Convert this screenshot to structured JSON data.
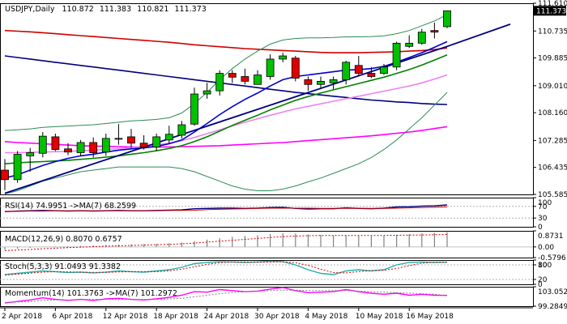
{
  "chart_data": {
    "type": "candlestick",
    "symbol": "USDJPY",
    "timeframe": "Daily",
    "header": {
      "label": "USDJPY,Daily",
      "open": "110.872",
      "high": "111.383",
      "low": "110.821",
      "close": "111.373"
    },
    "price_axis": {
      "ticks": [
        "111.610",
        "110.735",
        "109.885",
        "109.010",
        "108.160",
        "107.285",
        "106.435",
        "105.585"
      ],
      "range": [
        105.585,
        111.61
      ],
      "current_price_label": "111.373"
    },
    "date_axis": {
      "labels": [
        "2 Apr 2018",
        "6 Apr 2018",
        "12 Apr 2018",
        "18 Apr 2018",
        "24 Apr 2018",
        "30 Apr 2018",
        "4 May 2018",
        "10 May 2018",
        "16 May 2018"
      ],
      "label_bar_index": [
        0,
        4,
        8,
        12,
        16,
        20,
        24,
        28,
        32
      ]
    },
    "candles": [
      {
        "o": 106.35,
        "h": 106.7,
        "l": 105.72,
        "c": 106.05
      },
      {
        "o": 106.05,
        "h": 106.95,
        "l": 105.95,
        "c": 106.85
      },
      {
        "o": 106.8,
        "h": 107.05,
        "l": 106.3,
        "c": 106.9
      },
      {
        "o": 106.88,
        "h": 107.55,
        "l": 106.75,
        "c": 107.42
      },
      {
        "o": 107.4,
        "h": 107.5,
        "l": 106.95,
        "c": 107.0
      },
      {
        "o": 107.02,
        "h": 107.2,
        "l": 106.82,
        "c": 106.92
      },
      {
        "o": 106.9,
        "h": 107.3,
        "l": 106.8,
        "c": 107.22
      },
      {
        "o": 107.22,
        "h": 107.38,
        "l": 106.75,
        "c": 106.9
      },
      {
        "o": 106.92,
        "h": 107.5,
        "l": 106.8,
        "c": 107.35
      },
      {
        "o": 107.35,
        "h": 107.8,
        "l": 107.15,
        "c": 107.35
      },
      {
        "o": 107.4,
        "h": 107.65,
        "l": 107.05,
        "c": 107.2
      },
      {
        "o": 107.2,
        "h": 107.45,
        "l": 107.0,
        "c": 107.08
      },
      {
        "o": 107.08,
        "h": 107.5,
        "l": 106.95,
        "c": 107.4
      },
      {
        "o": 107.3,
        "h": 107.75,
        "l": 107.2,
        "c": 107.48
      },
      {
        "o": 107.45,
        "h": 107.9,
        "l": 107.35,
        "c": 107.78
      },
      {
        "o": 107.8,
        "h": 108.95,
        "l": 107.75,
        "c": 108.75
      },
      {
        "o": 108.75,
        "h": 109.1,
        "l": 108.6,
        "c": 108.85
      },
      {
        "o": 108.85,
        "h": 109.5,
        "l": 108.7,
        "c": 109.4
      },
      {
        "o": 109.4,
        "h": 109.5,
        "l": 109.1,
        "c": 109.28
      },
      {
        "o": 109.3,
        "h": 109.55,
        "l": 109.05,
        "c": 109.15
      },
      {
        "o": 109.05,
        "h": 109.5,
        "l": 109.05,
        "c": 109.35
      },
      {
        "o": 109.3,
        "h": 110.0,
        "l": 109.2,
        "c": 109.85
      },
      {
        "o": 109.85,
        "h": 110.05,
        "l": 109.75,
        "c": 109.95
      },
      {
        "o": 109.88,
        "h": 109.95,
        "l": 109.15,
        "c": 109.25
      },
      {
        "o": 109.2,
        "h": 109.3,
        "l": 108.85,
        "c": 109.05
      },
      {
        "o": 109.05,
        "h": 109.3,
        "l": 108.9,
        "c": 109.15
      },
      {
        "o": 109.1,
        "h": 109.3,
        "l": 108.9,
        "c": 109.2
      },
      {
        "o": 109.2,
        "h": 109.8,
        "l": 109.05,
        "c": 109.75
      },
      {
        "o": 109.65,
        "h": 109.95,
        "l": 109.3,
        "c": 109.4
      },
      {
        "o": 109.4,
        "h": 109.6,
        "l": 109.25,
        "c": 109.3
      },
      {
        "o": 109.4,
        "h": 109.7,
        "l": 109.35,
        "c": 109.6
      },
      {
        "o": 109.6,
        "h": 110.4,
        "l": 109.5,
        "c": 110.35
      },
      {
        "o": 110.25,
        "h": 110.6,
        "l": 110.2,
        "c": 110.35
      },
      {
        "o": 110.35,
        "h": 110.8,
        "l": 110.3,
        "c": 110.7
      },
      {
        "o": 110.75,
        "h": 111.0,
        "l": 110.5,
        "c": 110.7
      },
      {
        "o": 110.872,
        "h": 111.383,
        "l": 110.821,
        "c": 111.373
      }
    ],
    "overlays": [
      {
        "kind": "moving-average",
        "color": "#d00000",
        "values": [
          110.75,
          110.73,
          110.71,
          110.68,
          110.65,
          110.62,
          110.59,
          110.56,
          110.53,
          110.5,
          110.47,
          110.44,
          110.41,
          110.38,
          110.34,
          110.3,
          110.27,
          110.24,
          110.21,
          110.18,
          110.16,
          110.14,
          110.12,
          110.1,
          110.08,
          110.06,
          110.05,
          110.05,
          110.05,
          110.06,
          110.07,
          110.08,
          110.1,
          110.12,
          110.15,
          110.2
        ]
      },
      {
        "kind": "moving-average",
        "color": "#000080",
        "values": [
          109.95,
          109.9,
          109.85,
          109.8,
          109.75,
          109.7,
          109.65,
          109.6,
          109.55,
          109.5,
          109.45,
          109.4,
          109.35,
          109.3,
          109.25,
          109.2,
          109.15,
          109.1,
          109.05,
          109.0,
          108.95,
          108.9,
          108.85,
          108.8,
          108.76,
          108.72,
          108.68,
          108.64,
          108.6,
          108.56,
          108.53,
          108.5,
          108.48,
          108.45,
          108.43,
          108.42
        ]
      },
      {
        "kind": "moving-average",
        "color": "#ff00ff",
        "values": [
          107.25,
          107.22,
          107.2,
          107.18,
          107.16,
          107.14,
          107.12,
          107.11,
          107.1,
          107.09,
          107.08,
          107.08,
          107.08,
          107.08,
          107.09,
          107.1,
          107.11,
          107.12,
          107.14,
          107.16,
          107.18,
          107.2,
          107.22,
          107.25,
          107.28,
          107.31,
          107.34,
          107.37,
          107.4,
          107.43,
          107.47,
          107.51,
          107.55,
          107.6,
          107.66,
          107.72
        ]
      },
      {
        "kind": "moving-average",
        "color": "#ee82ee",
        "values": [
          106.9,
          106.9,
          106.91,
          106.92,
          106.93,
          106.94,
          106.96,
          106.98,
          107.0,
          107.03,
          107.06,
          107.1,
          107.14,
          107.2,
          107.28,
          107.38,
          107.5,
          107.62,
          107.74,
          107.86,
          107.97,
          108.08,
          108.18,
          108.28,
          108.36,
          108.44,
          108.52,
          108.6,
          108.68,
          108.76,
          108.84,
          108.92,
          109.0,
          109.1,
          109.22,
          109.35
        ]
      },
      {
        "kind": "moving-average",
        "color": "#008000",
        "values": [
          106.55,
          106.58,
          106.6,
          106.62,
          106.64,
          106.66,
          106.69,
          106.72,
          106.76,
          106.8,
          106.85,
          106.9,
          106.96,
          107.03,
          107.12,
          107.25,
          107.4,
          107.58,
          107.76,
          107.92,
          108.08,
          108.25,
          108.4,
          108.55,
          108.67,
          108.78,
          108.88,
          108.98,
          109.08,
          109.18,
          109.28,
          109.4,
          109.52,
          109.66,
          109.82,
          109.98
        ]
      },
      {
        "kind": "moving-average",
        "color": "#0000cd",
        "values": [
          106.1,
          106.2,
          106.35,
          106.5,
          106.62,
          106.72,
          106.8,
          106.85,
          106.92,
          106.98,
          107.02,
          107.05,
          107.1,
          107.18,
          107.3,
          107.55,
          107.82,
          108.1,
          108.35,
          108.58,
          108.78,
          109.0,
          109.2,
          109.3,
          109.35,
          109.4,
          109.45,
          109.5,
          109.52,
          109.55,
          109.62,
          109.75,
          109.9,
          110.05,
          110.22,
          110.4
        ]
      },
      {
        "kind": "bollinger-upper",
        "color": "#2e8b57",
        "values": [
          107.6,
          107.62,
          107.65,
          107.7,
          107.72,
          107.74,
          107.76,
          107.78,
          107.82,
          107.86,
          107.9,
          107.92,
          107.95,
          108.0,
          108.15,
          108.45,
          108.8,
          109.2,
          109.55,
          109.85,
          110.1,
          110.32,
          110.45,
          110.5,
          110.52,
          110.52,
          110.53,
          110.55,
          110.55,
          110.56,
          110.58,
          110.65,
          110.75,
          110.9,
          111.05,
          111.25
        ]
      },
      {
        "kind": "bollinger-lower",
        "color": "#2e8b57",
        "values": [
          105.6,
          105.7,
          105.85,
          106.0,
          106.1,
          106.2,
          106.3,
          106.35,
          106.4,
          106.45,
          106.45,
          106.45,
          106.45,
          106.45,
          106.4,
          106.3,
          106.15,
          106.0,
          105.85,
          105.75,
          105.7,
          105.7,
          105.75,
          105.85,
          105.98,
          106.1,
          106.25,
          106.4,
          106.55,
          106.75,
          107.0,
          107.3,
          107.65,
          108.0,
          108.4,
          108.8
        ]
      },
      {
        "kind": "trendline",
        "color": "#000080",
        "points": [
          [
            0,
            105.62
          ],
          [
            35,
            110.25
          ],
          [
            40,
            110.95
          ]
        ]
      }
    ],
    "indicators": [
      {
        "name": "RSI",
        "label": "RSI(14) 74.9951 ->MA(7) 68.2599",
        "axis_labels": [
          "100",
          "70",
          "30",
          "0"
        ],
        "range": [
          0,
          100
        ],
        "levels": [
          70,
          30
        ],
        "series": [
          {
            "name": "RSI(14)",
            "color": "#000080",
            "values": [
              52,
              54,
              55,
              56,
              55,
              54,
              55,
              54,
              55,
              56,
              55,
              55,
              56,
              57,
              58,
              62,
              63,
              64,
              64,
              63,
              64,
              66,
              67,
              63,
              61,
              62,
              62,
              65,
              63,
              62,
              64,
              68,
              69,
              71,
              72,
              74.9951
            ]
          },
          {
            "name": "MA(7)",
            "color": "#d00000",
            "values": [
              53,
              53,
              54,
              54,
              55,
              55,
              55,
              55,
              55,
              55,
              55,
              55,
              55,
              56,
              56,
              57,
              59,
              60,
              61,
              62,
              63,
              64,
              64,
              64,
              64,
              63,
              63,
              63,
              63,
              63,
              63,
              64,
              65,
              66,
              67,
              68.2599
            ]
          }
        ]
      },
      {
        "name": "MACD",
        "label": "MACD(12,26,9) 0.8070 0.6757",
        "axis_labels": [
          "0.8731",
          "0.00",
          "-0.5796"
        ],
        "range": [
          -0.5796,
          0.8731
        ],
        "histogram": {
          "color": "#808080",
          "values": [
            -0.15,
            -0.1,
            -0.05,
            0.0,
            0.02,
            0.04,
            0.06,
            0.08,
            0.1,
            0.12,
            0.14,
            0.15,
            0.17,
            0.2,
            0.24,
            0.32,
            0.4,
            0.48,
            0.55,
            0.6,
            0.64,
            0.7,
            0.74,
            0.72,
            0.68,
            0.65,
            0.62,
            0.63,
            0.62,
            0.6,
            0.61,
            0.66,
            0.7,
            0.74,
            0.77,
            0.807
          ]
        },
        "signal": {
          "color": "#d00000",
          "values": [
            -0.2,
            -0.17,
            -0.14,
            -0.1,
            -0.07,
            -0.04,
            -0.01,
            0.01,
            0.04,
            0.06,
            0.08,
            0.1,
            0.12,
            0.14,
            0.17,
            0.21,
            0.26,
            0.31,
            0.36,
            0.41,
            0.46,
            0.51,
            0.56,
            0.59,
            0.61,
            0.62,
            0.62,
            0.62,
            0.62,
            0.62,
            0.62,
            0.63,
            0.64,
            0.65,
            0.66,
            0.6757
          ]
        }
      },
      {
        "name": "Stoch",
        "label": "Stoch(5,3,3) 91.0493 91.3382",
        "axis_labels": [
          "100",
          "80",
          "20",
          "0"
        ],
        "range": [
          0,
          100
        ],
        "levels": [
          80,
          20
        ],
        "series": [
          {
            "name": "%K",
            "color": "#20b2aa",
            "values": [
              40,
              45,
              50,
              55,
              52,
              48,
              50,
              47,
              50,
              55,
              52,
              50,
              55,
              60,
              70,
              85,
              90,
              93,
              92,
              90,
              92,
              95,
              93,
              80,
              60,
              45,
              40,
              55,
              60,
              55,
              60,
              80,
              90,
              92,
              90,
              91.0493
            ]
          },
          {
            "name": "%D",
            "color": "#d00000",
            "values": [
              38,
              42,
              46,
              50,
              52,
              51,
              50,
              49,
              49,
              51,
              52,
              52,
              52,
              55,
              62,
              72,
              82,
              89,
              92,
              92,
              91,
              92,
              93,
              89,
              78,
              62,
              48,
              47,
              52,
              57,
              58,
              65,
              77,
              87,
              91,
              91.3382
            ]
          }
        ]
      },
      {
        "name": "Momentum",
        "label": "Momentum(14) 101.3763 ->MA(7) 101.2972",
        "axis_labels": [
          "103.0528",
          "99.2849"
        ],
        "range": [
          99.2849,
          103.0528
        ],
        "series": [
          {
            "name": "Momentum(14)",
            "color": "#ff00ff",
            "values": [
              99.9,
              100.2,
              100.5,
              100.9,
              100.6,
              100.4,
              100.6,
              100.4,
              100.7,
              100.8,
              100.6,
              100.5,
              100.7,
              101.0,
              101.4,
              102.1,
              102.0,
              102.5,
              102.3,
              102.1,
              102.2,
              102.6,
              102.9,
              102.3,
              101.9,
              102.0,
              102.1,
              102.5,
              102.1,
              101.8,
              101.6,
              101.8,
              101.4,
              101.6,
              101.4,
              101.3763
            ]
          },
          {
            "name": "MA(7)",
            "color": "#808080",
            "values": [
              100.0,
              100.1,
              100.2,
              100.4,
              100.5,
              100.5,
              100.6,
              100.6,
              100.6,
              100.6,
              100.6,
              100.6,
              100.6,
              100.7,
              100.8,
              101.1,
              101.4,
              101.7,
              101.9,
              102.1,
              102.2,
              102.3,
              102.4,
              102.4,
              102.3,
              102.3,
              102.3,
              102.3,
              102.2,
              102.1,
              102.0,
              101.9,
              101.8,
              101.7,
              101.6,
              101.2972
            ]
          }
        ]
      }
    ]
  }
}
